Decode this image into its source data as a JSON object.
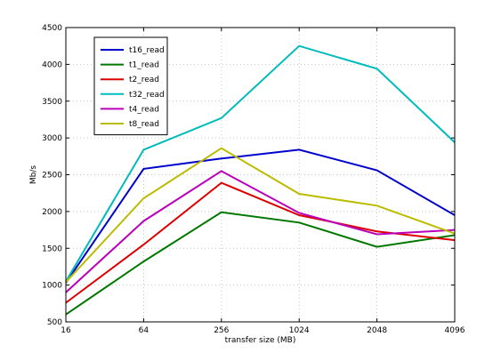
{
  "chart_data": {
    "type": "line",
    "title": "",
    "xlabel": "transfer size (MB)",
    "ylabel": "Mb/s",
    "categories": [
      "16",
      "64",
      "256",
      "1024",
      "2048",
      "4096"
    ],
    "ylim": [
      500,
      4500
    ],
    "yticks": [
      "500",
      "1000",
      "1500",
      "2000",
      "2500",
      "3000",
      "3500",
      "4000",
      "4500"
    ],
    "grid": true,
    "legend_position": "top-left",
    "series": [
      {
        "name": "t16_read",
        "color": "#0000cc",
        "values": [
          1030,
          2580,
          2720,
          2840,
          2560,
          1950
        ]
      },
      {
        "name": "t1_read",
        "color": "#007700",
        "values": [
          600,
          1320,
          1990,
          1850,
          1520,
          1680
        ]
      },
      {
        "name": "t2_read",
        "color": "#dd0000",
        "values": [
          760,
          1550,
          2390,
          1950,
          1730,
          1610
        ]
      },
      {
        "name": "t32_read",
        "color": "#00bbbb",
        "values": [
          1050,
          2840,
          3270,
          4250,
          3940,
          2940
        ]
      },
      {
        "name": "t4_read",
        "color": "#bb00bb",
        "values": [
          900,
          1870,
          2550,
          1980,
          1690,
          1750
        ]
      },
      {
        "name": "t8_read",
        "color": "#bbbb00",
        "values": [
          1040,
          2180,
          2860,
          2240,
          2080,
          1700
        ]
      }
    ]
  }
}
